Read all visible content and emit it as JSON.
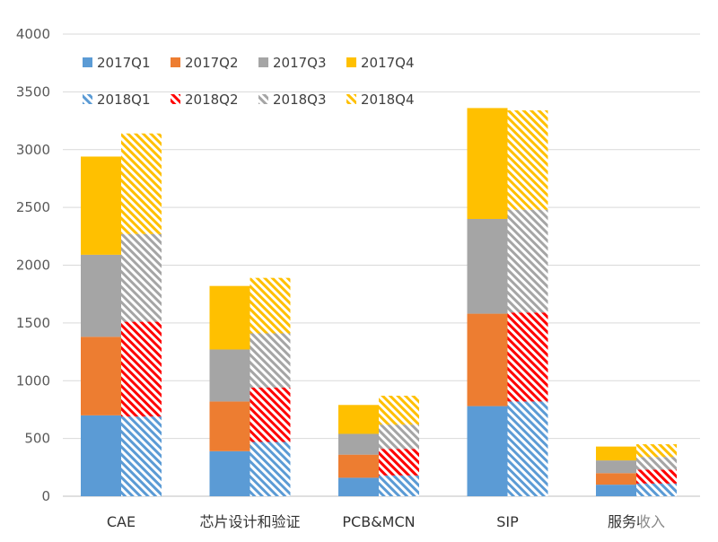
{
  "chart_data": {
    "type": "bar",
    "stacked": true,
    "grouped": true,
    "title": "",
    "xlabel": "",
    "ylabel": "",
    "ylim": [
      0,
      4000
    ],
    "yticks": [
      0,
      500,
      1000,
      1500,
      2000,
      2500,
      3000,
      3500,
      4000
    ],
    "grid": true,
    "legend_position": "top-left",
    "categories": [
      "CAE",
      "芯片设计和验证",
      "PCB&MCN",
      "SIP",
      "服务收入"
    ],
    "groups": [
      {
        "name": "2017",
        "pattern": "solid",
        "series": [
          {
            "name": "2017Q1",
            "color": "#5b9bd5",
            "values": [
              700,
              390,
              160,
              780,
              100
            ]
          },
          {
            "name": "2017Q2",
            "color": "#ed7d31",
            "values": [
              680,
              430,
              200,
              800,
              100
            ]
          },
          {
            "name": "2017Q3",
            "color": "#a5a5a5",
            "values": [
              710,
              450,
              180,
              820,
              110
            ]
          },
          {
            "name": "2017Q4",
            "color": "#ffc000",
            "values": [
              850,
              550,
              250,
              960,
              120
            ]
          }
        ]
      },
      {
        "name": "2018",
        "pattern": "hatched",
        "series": [
          {
            "name": "2018Q1",
            "color": "#5b9bd5",
            "values": [
              690,
              470,
              180,
              820,
              110
            ]
          },
          {
            "name": "2018Q2",
            "color": "#ff0000",
            "values": [
              820,
              470,
              230,
              770,
              120
            ]
          },
          {
            "name": "2018Q3",
            "color": "#a5a5a5",
            "values": [
              760,
              470,
              210,
              890,
              110
            ]
          },
          {
            "name": "2018Q4",
            "color": "#ffc000",
            "values": [
              870,
              480,
              250,
              860,
              110
            ]
          }
        ]
      }
    ]
  }
}
